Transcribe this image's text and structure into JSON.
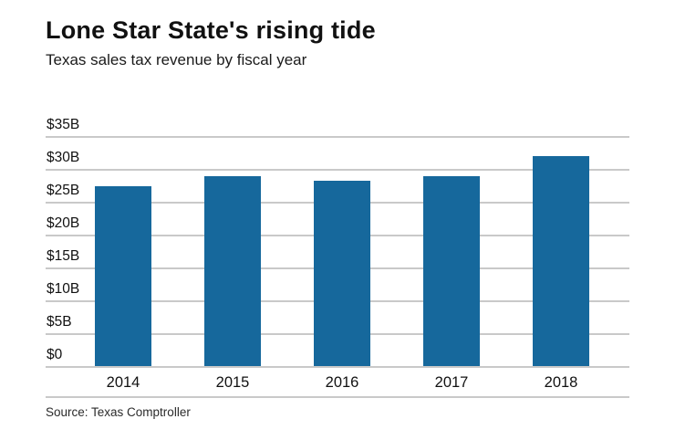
{
  "header": {
    "title": "Lone Star State's rising tide",
    "subtitle": "Texas sales tax revenue by fiscal year"
  },
  "chart_data": {
    "type": "bar",
    "categories": [
      "2014",
      "2015",
      "2016",
      "2017",
      "2018"
    ],
    "values": [
      27.4,
      28.9,
      28.2,
      28.9,
      31.9
    ],
    "title": "Lone Star State's rising tide",
    "subtitle": "Texas sales tax revenue by fiscal year",
    "xlabel": "",
    "ylabel": "",
    "ylim": [
      0,
      35
    ],
    "ytick_step": 5,
    "ytick_labels": [
      "$0",
      "$5B",
      "$10B",
      "$15B",
      "$20B",
      "$25B",
      "$30B",
      "$35B"
    ],
    "grid": true,
    "legend": "none",
    "bar_color": "#16689C",
    "gridline_color": "#c9c9c9"
  },
  "footer": {
    "source": "Source: Texas Comptroller"
  }
}
